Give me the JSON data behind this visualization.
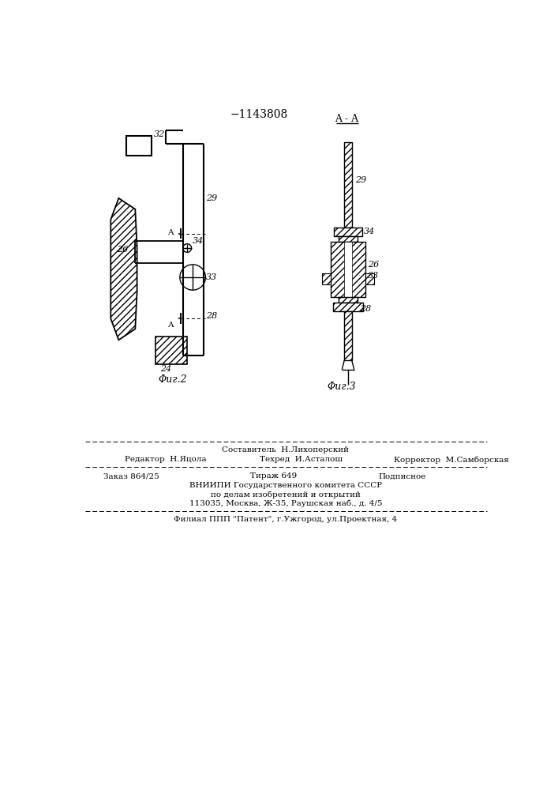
{
  "title": "−1143808",
  "fig2_label": "Φиг.2",
  "fig3_label": "Φиг.3",
  "aa_label": "A - A",
  "background": "#ffffff",
  "line_color": "#000000",
  "footer_line1": "Составитель  Н.Лихоперский",
  "footer_line2a": "Редактор  Н.Яцола",
  "footer_line2b": "Техред  И.Асталош",
  "footer_line2c": "Корректор  М.Самборская",
  "footer_line3a": "Заказ 864/25",
  "footer_line3b": "Тираж 649",
  "footer_line3c": "Подписное",
  "footer_line4": "ВНИИПИ Государственного комитета СССР",
  "footer_line5": "по делам изобретений и открытий",
  "footer_line6": "113035, Москва, Ж-35, Раушская наб., д. 4/5",
  "footer_line7": "Филиал ППП \"Патент\", г.Ужгород, ул.Проектная, 4"
}
